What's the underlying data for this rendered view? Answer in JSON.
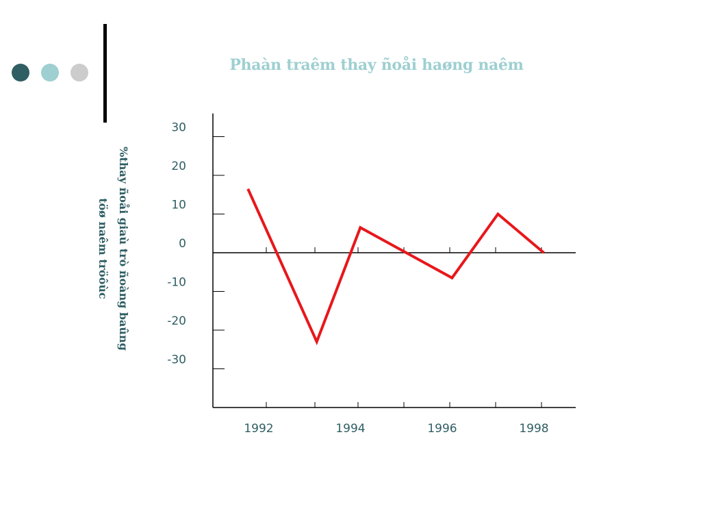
{
  "colors": {
    "dot_dark": "#2f5e63",
    "dot_light": "#9ecfd1",
    "dot_gray": "#cccccc",
    "title": "#9ecfd1",
    "text": "#2f5e63",
    "line": "#e8171b",
    "axis": "#000000"
  },
  "chart_data": {
    "type": "line",
    "title": "Phaàn traêm thay ñoåi haøng naêm",
    "ylabel": [
      "%thay ñoåi giaù trò ñoàng baûng",
      "töø naêm tröôùc"
    ],
    "xlabel": "",
    "x": [
      1991.6,
      1993.1,
      1994.05,
      1996.05,
      1997.05,
      1998.05
    ],
    "values": [
      16.5,
      -23,
      6.5,
      -6.5,
      10,
      0
    ],
    "xticks": [
      1992,
      1994,
      1996,
      1998
    ],
    "yticks": [
      30,
      20,
      10,
      0,
      -10,
      -20,
      -30
    ],
    "ylim": [
      -40,
      36
    ],
    "grid": false,
    "legend": "none"
  }
}
